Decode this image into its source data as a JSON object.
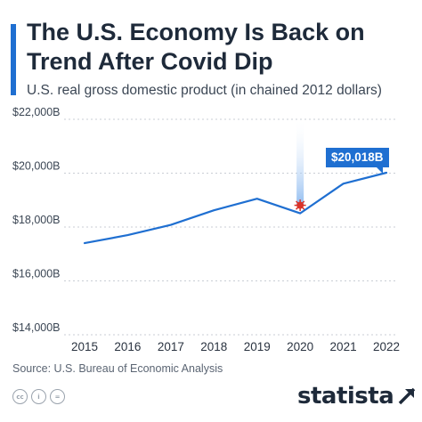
{
  "header": {
    "title_line1": "The U.S. Economy Is Back on",
    "title_line2": "Trend After Covid Dip",
    "subtitle": "U.S. real gross domestic product (in chained 2012 dollars)"
  },
  "colors": {
    "accent": "#1f6fd1",
    "covid_marker": "#d9342b",
    "title": "#1e2a3a"
  },
  "chart_data": {
    "type": "line",
    "title": "The U.S. Economy Is Back on Trend After Covid Dip",
    "subtitle": "U.S. real gross domestic product (in chained 2012 dollars)",
    "xlabel": "",
    "ylabel": "",
    "x": [
      "2015",
      "2016",
      "2017",
      "2018",
      "2019",
      "2020",
      "2021",
      "2022"
    ],
    "series": [
      {
        "values": [
          17400,
          17700,
          18080,
          18620,
          19050,
          18510,
          19610,
          20018
        ]
      }
    ],
    "ylim": [
      14000,
      22000
    ],
    "yticks": [
      14000,
      16000,
      18000,
      20000,
      22000
    ],
    "ytick_labels": [
      "$14,000B",
      "$16,000B",
      "$18,000B",
      "$20,000B",
      "$22,000B"
    ],
    "grid": true,
    "annotations": [
      {
        "x": "2022",
        "label": "$20,018B"
      },
      {
        "x": "2020",
        "marker": "virus-icon"
      }
    ]
  },
  "footer": {
    "source": "Source: U.S. Bureau of Economic Analysis",
    "brand": "statista",
    "license_icons": [
      "cc",
      "i",
      "="
    ]
  }
}
